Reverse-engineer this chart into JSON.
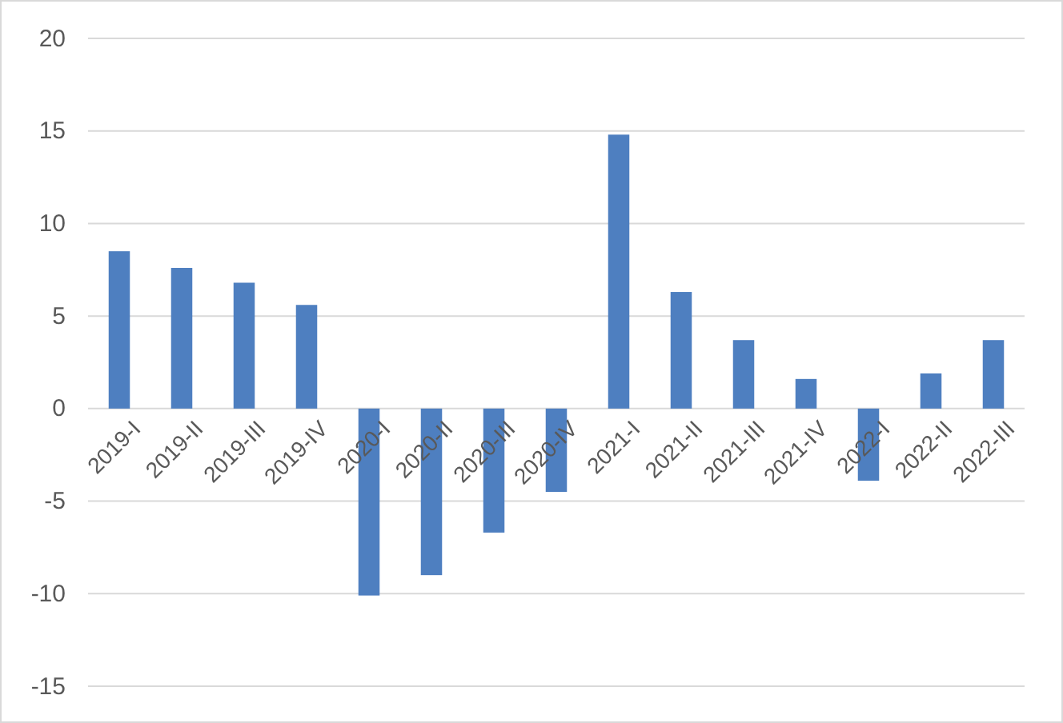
{
  "chart_data": {
    "type": "bar",
    "categories": [
      "2019-I",
      "2019-II",
      "2019-III",
      "2019-IV",
      "2020-I",
      "2020-II",
      "2020-III",
      "2020-IV",
      "2021-I",
      "2021-II",
      "2021-III",
      "2021-IV",
      "2022-I",
      "2022-II",
      "2022-III"
    ],
    "values": [
      8.5,
      7.6,
      6.8,
      5.6,
      -10.1,
      -9.0,
      -6.7,
      -4.5,
      14.8,
      6.3,
      3.7,
      1.6,
      -3.9,
      1.9,
      3.7
    ],
    "color": "#4e7fc0",
    "ylim": [
      -15,
      20
    ],
    "yticks": [
      -15,
      -10,
      -5,
      0,
      5,
      10,
      15,
      20
    ],
    "grid": "y"
  }
}
